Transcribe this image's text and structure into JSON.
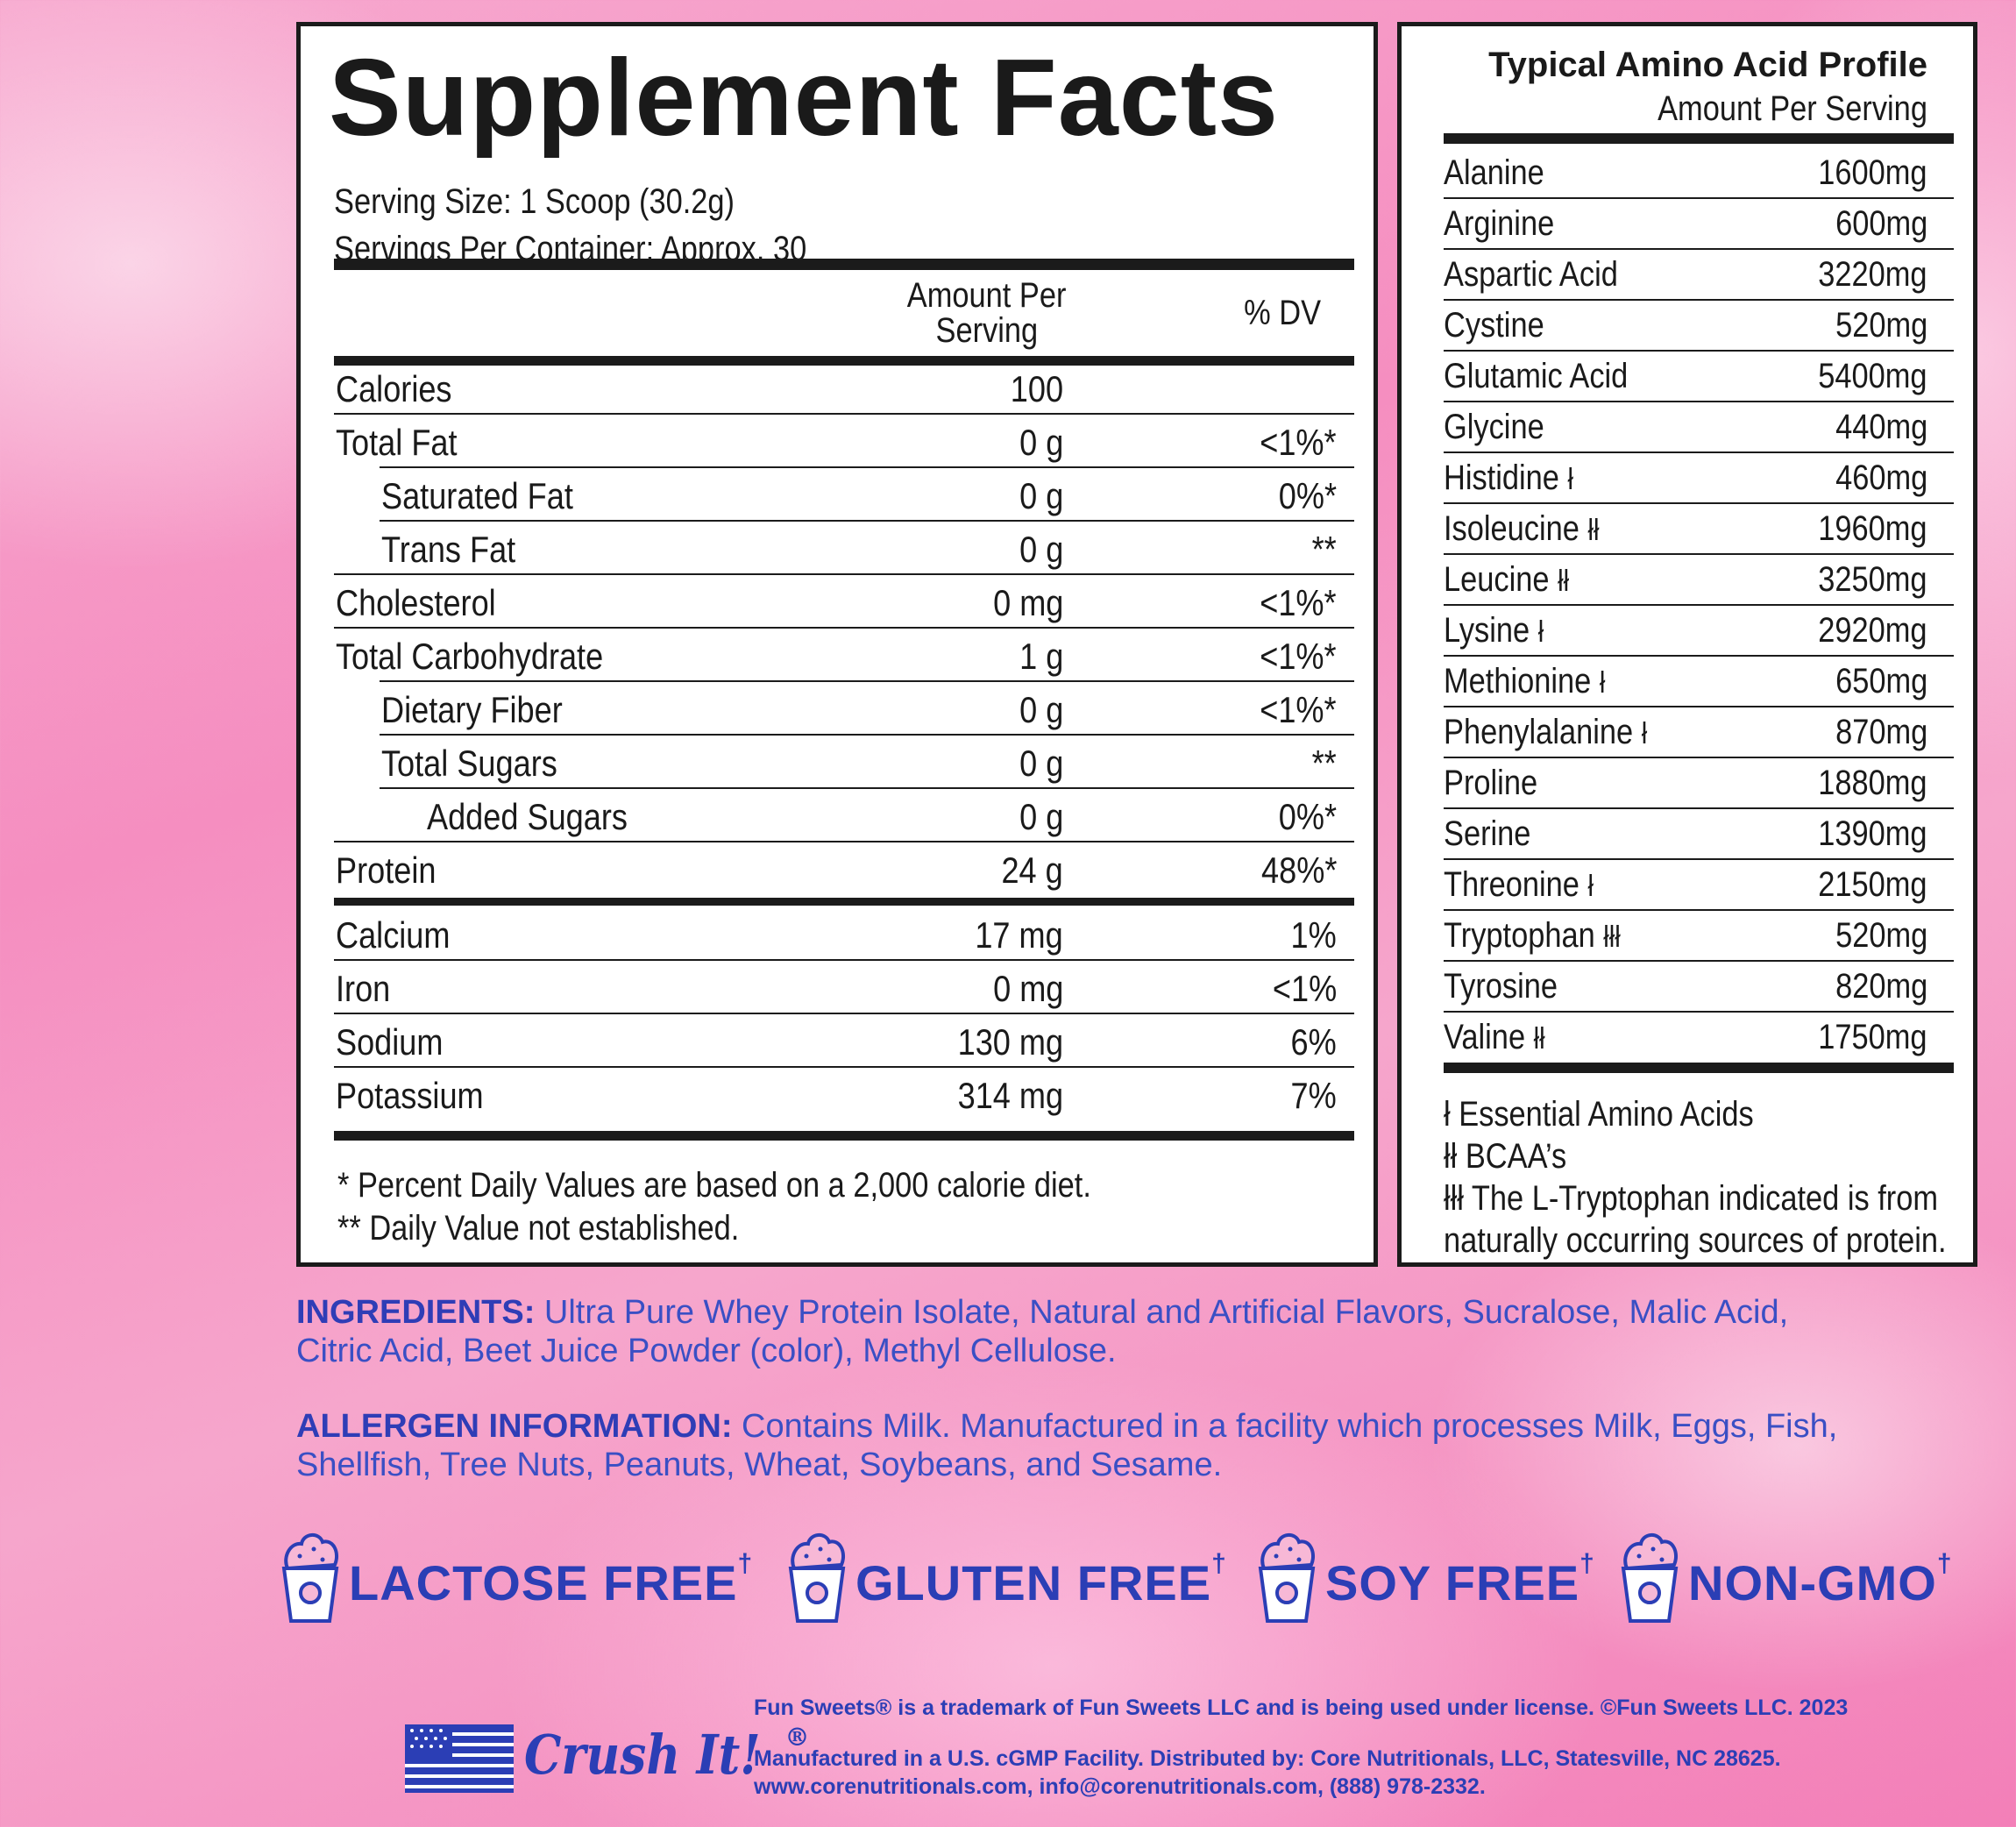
{
  "supplement_facts": {
    "title": "Supplement Facts",
    "serving_size": "Serving Size: 1 Scoop (30.2g)",
    "servings_per_container": "Servings Per Container: Approx. 30",
    "header_amount_line1": "Amount Per",
    "header_amount_line2": "Serving",
    "header_dv": "% DV",
    "rows": [
      {
        "name": "Calories",
        "amount": "100",
        "dv": ""
      },
      {
        "name": "Total Fat",
        "amount": "0 g",
        "dv": "<1%*"
      },
      {
        "name": "Saturated Fat",
        "amount": "0 g",
        "dv": "0%*"
      },
      {
        "name": "Trans Fat",
        "amount": "0 g",
        "dv": "**"
      },
      {
        "name": "Cholesterol",
        "amount": "0 mg",
        "dv": "<1%*"
      },
      {
        "name": "Total Carbohydrate",
        "amount": "1 g",
        "dv": "<1%*"
      },
      {
        "name": "Dietary Fiber",
        "amount": "0 g",
        "dv": "<1%*"
      },
      {
        "name": "Total Sugars",
        "amount": "0 g",
        "dv": "**"
      },
      {
        "name": "Added Sugars",
        "amount": "0 g",
        "dv": "0%*"
      },
      {
        "name": "Protein",
        "amount": "24 g",
        "dv": "48%*"
      },
      {
        "name": "Calcium",
        "amount": "17 mg",
        "dv": "1%"
      },
      {
        "name": "Iron",
        "amount": "0 mg",
        "dv": "<1%"
      },
      {
        "name": "Sodium",
        "amount": "130 mg",
        "dv": "6%"
      },
      {
        "name": "Potassium",
        "amount": "314 mg",
        "dv": "7%"
      }
    ],
    "footnote_1": "* Percent Daily Values are based on a 2,000 calorie diet.",
    "footnote_2": "** Daily Value not established."
  },
  "amino_profile": {
    "title": "Typical Amino Acid Profile",
    "subtitle": "Amount Per Serving",
    "rows": [
      {
        "name": "Alanine",
        "mark": "",
        "value": "1600mg"
      },
      {
        "name": "Arginine",
        "mark": "",
        "value": "600mg"
      },
      {
        "name": "Aspartic Acid",
        "mark": "",
        "value": "3220mg"
      },
      {
        "name": "Cystine",
        "mark": "",
        "value": "520mg"
      },
      {
        "name": "Glutamic Acid",
        "mark": "",
        "value": "5400mg"
      },
      {
        "name": "Glycine",
        "mark": "",
        "value": "440mg"
      },
      {
        "name": "Histidine",
        "mark": "ł",
        "value": "460mg"
      },
      {
        "name": "Isoleucine",
        "mark": "łł",
        "value": "1960mg"
      },
      {
        "name": "Leucine",
        "mark": "łł",
        "value": "3250mg"
      },
      {
        "name": "Lysine",
        "mark": "ł",
        "value": "2920mg"
      },
      {
        "name": "Methionine",
        "mark": "ł",
        "value": "650mg"
      },
      {
        "name": "Phenylalanine",
        "mark": "ł",
        "value": "870mg"
      },
      {
        "name": "Proline",
        "mark": "",
        "value": "1880mg"
      },
      {
        "name": "Serine",
        "mark": "",
        "value": "1390mg"
      },
      {
        "name": "Threonine",
        "mark": "ł",
        "value": "2150mg"
      },
      {
        "name": "Tryptophan",
        "mark": "łłł",
        "value": "520mg"
      },
      {
        "name": "Tyrosine",
        "mark": "",
        "value": "820mg"
      },
      {
        "name": "Valine",
        "mark": "łł",
        "value": "1750mg"
      }
    ],
    "legend_1": "ł Essential Amino Acids",
    "legend_2": "łł BCAA’s",
    "legend_3": "łłł The L-Tryptophan indicated is from",
    "legend_4": "naturally occurring sources of protein."
  },
  "ingredients": {
    "label": "INGREDIENTS:",
    "text_line1": "Ultra Pure Whey Protein Isolate, Natural and Artificial Flavors, Sucralose, Malic Acid,",
    "text_line2": "Citric Acid, Beet Juice Powder (color), Methyl Cellulose."
  },
  "allergen": {
    "label": "ALLERGEN INFORMATION:",
    "text_line1": "Contains Milk. Manufactured in a facility which processes Milk, Eggs, Fish,",
    "text_line2": "Shellfish, Tree Nuts, Peanuts, Wheat, Soybeans, and Sesame."
  },
  "badges": [
    {
      "label": "LACTOSE FREE",
      "dagger": "†"
    },
    {
      "label": "GLUTEN FREE",
      "dagger": "†"
    },
    {
      "label": "SOY FREE",
      "dagger": "†"
    },
    {
      "label": "NON-GMO",
      "dagger": "†"
    }
  ],
  "footer": {
    "brand": "Crush It!",
    "brand_mark": "®",
    "trademark": "Fun Sweets® is a trademark of Fun Sweets LLC and is being used under license. ©Fun Sweets LLC. 2023",
    "manufacturer": "Manufactured in a U.S. cGMP Facility. Distributed by: Core Nutritionals, LLC, Statesville, NC 28625.",
    "contact": "www.corenutritionals.com, info@corenutritionals.com, (888) 978-2332."
  },
  "colors": {
    "ink": "#1b1b1b",
    "brand_blue": "#2b3eb5",
    "pink": "#f58ec0"
  },
  "icons": [
    "ice-cream-cup-icon",
    "us-flag-icon"
  ]
}
